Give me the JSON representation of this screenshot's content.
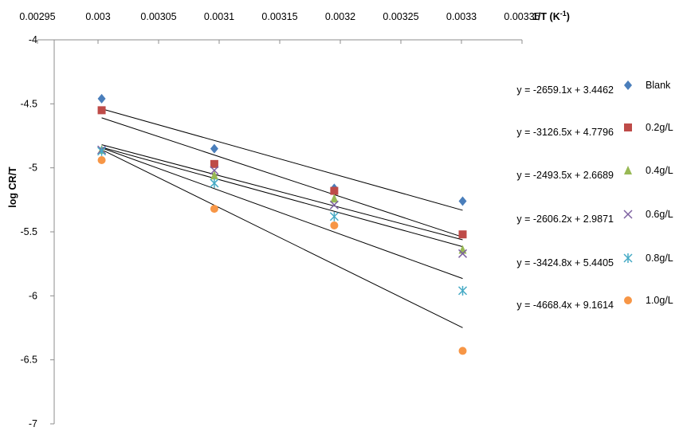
{
  "chart_data": {
    "type": "scatter",
    "xlabel": "1/T (K",
    "xlabel_sup": "-1",
    "xlabel_close": ")",
    "ylabel": "log CR/T",
    "xlim": [
      0.00295,
      0.00335
    ],
    "ylim": [
      -7,
      -4
    ],
    "x_ticks": [
      0.00295,
      0.003,
      0.00305,
      0.0031,
      0.00315,
      0.0032,
      0.00325,
      0.0033,
      0.00335
    ],
    "x_tick_labels": [
      "0.00295",
      "0.003",
      "0.00305",
      "0.0031",
      "0.00315",
      "0.0032",
      "0.00325",
      "0.0033",
      "0.00335"
    ],
    "y_ticks": [
      -4,
      -4.5,
      -5,
      -5.5,
      -6,
      -6.5,
      -7
    ],
    "y_tick_labels": [
      "-4",
      "-4.5",
      "-5",
      "-5.5",
      "-6",
      "-6.5",
      "-7"
    ],
    "x_axis_position": "top",
    "grid": false,
    "legend_position": "right",
    "x": [
      0.003003,
      0.003096,
      0.003195,
      0.003301
    ],
    "series": [
      {
        "name": "Blank",
        "marker": "diamond",
        "color": "#4a7ebb",
        "values": [
          -4.46,
          -4.85,
          -5.16,
          -5.26
        ],
        "trendline": {
          "slope": -2659.1,
          "intercept": 3.4462,
          "equation": "y = -2659.1x + 3.4462"
        }
      },
      {
        "name": "0.2g/L",
        "marker": "square",
        "color": "#be4b48",
        "values": [
          -4.55,
          -4.97,
          -5.18,
          -5.52
        ],
        "trendline": {
          "slope": -3126.5,
          "intercept": 4.7796,
          "equation": "y = -3126.5x + 4.7796"
        }
      },
      {
        "name": "0.4g/L",
        "marker": "triangle",
        "color": "#98b954",
        "values": [
          -4.86,
          -5.06,
          -5.24,
          -5.64
        ],
        "trendline": {
          "slope": -2493.5,
          "intercept": 2.6689,
          "equation": "y = -2493.5x + 2.6689"
        }
      },
      {
        "name": "0.6g/L",
        "marker": "x",
        "color": "#7d60a0",
        "values": [
          -4.86,
          -5.02,
          -5.29,
          -5.67
        ],
        "trendline": {
          "slope": -2606.2,
          "intercept": 2.9871,
          "equation": "y = -2606.2x + 2.9871"
        }
      },
      {
        "name": "0.8g/L",
        "marker": "star",
        "color": "#46aac5",
        "values": [
          -4.87,
          -5.12,
          -5.38,
          -5.96
        ],
        "trendline": {
          "slope": -3424.8,
          "intercept": 5.4405,
          "equation": "y = -3424.8x + 5.4405"
        }
      },
      {
        "name": "1.0g/L",
        "marker": "circle",
        "color": "#f79646",
        "values": [
          -4.94,
          -5.32,
          -5.45,
          -6.43
        ],
        "trendline": {
          "slope": -4668.4,
          "intercept": 9.1614,
          "equation": "y = -4668.4x + 9.1614"
        }
      }
    ]
  }
}
